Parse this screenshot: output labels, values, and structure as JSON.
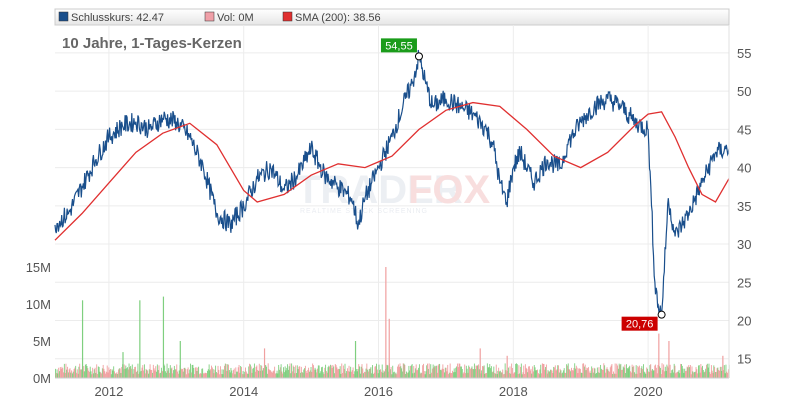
{
  "legend": {
    "close": "Schlusskurs: 42.47",
    "vol": "Vol: 0M",
    "sma": "SMA (200): 38.56"
  },
  "subtitle": "10 Jahre, 1-Tages-Kerzen",
  "watermark": {
    "part1": "TRADER",
    "part2": "FOX",
    "tagline": "REALTIME STOCK SCREENING"
  },
  "colors": {
    "close": "#1a4f8c",
    "sma": "#e03030",
    "vol_up": "#7fcf7f",
    "vol_down": "#f0a0a0",
    "high_label_bg": "#1a9c1a",
    "low_label_bg": "#cc0000"
  },
  "chart_data": {
    "type": "line",
    "x_range": [
      2011.2,
      2021.2
    ],
    "y_range": [
      13,
      58
    ],
    "vol_range": [
      0,
      15
    ],
    "x_ticks": [
      "2012",
      "2014",
      "2016",
      "2018",
      "2020"
    ],
    "y_ticks": [
      "15",
      "20",
      "25",
      "30",
      "35",
      "40",
      "45",
      "50",
      "55"
    ],
    "vol_ticks": [
      "0M",
      "5M",
      "10M",
      "15M"
    ],
    "high": {
      "x": 2016.6,
      "y": 54.55,
      "label": "54,55"
    },
    "low": {
      "x": 2020.2,
      "y": 20.76,
      "label": "20,76"
    },
    "series": [
      {
        "key": "close",
        "x": [
          2011.2,
          2011.4,
          2011.6,
          2011.8,
          2012.0,
          2012.2,
          2012.4,
          2012.6,
          2012.8,
          2013.0,
          2013.2,
          2013.4,
          2013.6,
          2013.8,
          2014.0,
          2014.2,
          2014.4,
          2014.6,
          2014.8,
          2015.0,
          2015.2,
          2015.4,
          2015.6,
          2015.7,
          2015.8,
          2016.0,
          2016.2,
          2016.4,
          2016.5,
          2016.6,
          2016.7,
          2016.8,
          2017.0,
          2017.2,
          2017.4,
          2017.6,
          2017.7,
          2017.8,
          2017.9,
          2018.0,
          2018.1,
          2018.3,
          2018.5,
          2018.7,
          2018.8,
          2019.0,
          2019.2,
          2019.4,
          2019.6,
          2019.8,
          2020.0,
          2020.05,
          2020.1,
          2020.15,
          2020.2,
          2020.3,
          2020.4,
          2020.6,
          2020.8,
          2021.0,
          2021.2
        ],
        "values": [
          32.5,
          34,
          37.5,
          41,
          44,
          45.5,
          46,
          45,
          46.5,
          46,
          44,
          40,
          34,
          32.5,
          35,
          38.5,
          40,
          37,
          39,
          42.5,
          39,
          37.5,
          36,
          32.5,
          36,
          40,
          44,
          49,
          51,
          54.55,
          51,
          48,
          49,
          48,
          47,
          45,
          43,
          38,
          35.5,
          40,
          42,
          38,
          41,
          40,
          43,
          46,
          48,
          49,
          48,
          46,
          45,
          35,
          25,
          22,
          20.76,
          36,
          31,
          34,
          38,
          42,
          42.47
        ]
      },
      {
        "key": "sma",
        "x": [
          2011.2,
          2011.6,
          2012.0,
          2012.4,
          2012.8,
          2013.2,
          2013.6,
          2014.0,
          2014.2,
          2014.6,
          2015.0,
          2015.4,
          2015.8,
          2016.2,
          2016.6,
          2017.0,
          2017.4,
          2017.8,
          2018.2,
          2018.6,
          2019.0,
          2019.4,
          2019.8,
          2020.0,
          2020.2,
          2020.4,
          2020.6,
          2020.8,
          2021.0,
          2021.2
        ],
        "values": [
          30.5,
          34,
          38,
          42,
          44.5,
          45.8,
          43,
          37,
          35.5,
          36.5,
          39,
          40.5,
          40,
          41.5,
          45,
          47.5,
          48.5,
          48,
          45,
          41.5,
          40,
          42,
          45.5,
          47,
          47.3,
          44,
          40,
          36.5,
          35.5,
          38.56
        ]
      }
    ],
    "volume_spikes": [
      {
        "x": 2011.6,
        "v": 10.5
      },
      {
        "x": 2012.2,
        "v": 3.5
      },
      {
        "x": 2012.45,
        "v": 10.5
      },
      {
        "x": 2012.8,
        "v": 11
      },
      {
        "x": 2013.05,
        "v": 5
      },
      {
        "x": 2014.3,
        "v": 4
      },
      {
        "x": 2015.65,
        "v": 5
      },
      {
        "x": 2016.1,
        "v": 15
      },
      {
        "x": 2016.15,
        "v": 8
      },
      {
        "x": 2017.5,
        "v": 4
      },
      {
        "x": 2017.9,
        "v": 3
      },
      {
        "x": 2020.15,
        "v": 6
      },
      {
        "x": 2020.3,
        "v": 5
      },
      {
        "x": 2021.1,
        "v": 3
      }
    ]
  }
}
